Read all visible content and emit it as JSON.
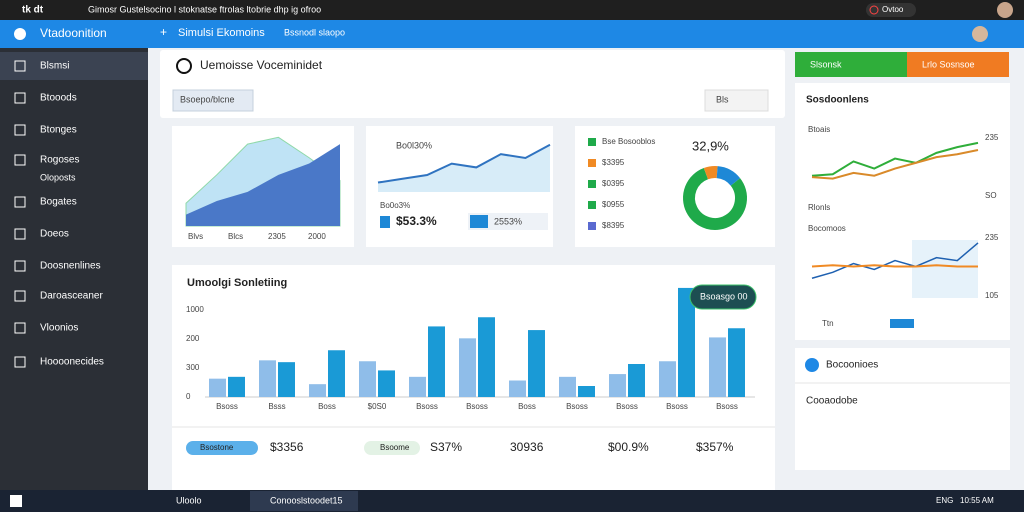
{
  "topbar": {
    "app": "tk dt",
    "title": "Gimosr Gustelsocino l stoknatse ftrolas ltobrie dhp ig ofroo",
    "status": "Ovtoo"
  },
  "sidebar": {
    "title": "Vtadoonition",
    "items": [
      "Blsmsi",
      "Btooods",
      "Btonges",
      "Rogoses",
      "Oloposts",
      "Bogates",
      "Doeos",
      "Doosnenlines",
      "Daroasceaner",
      "Vloonios",
      "Hoooonecides"
    ]
  },
  "header": {
    "title": "Simulsi Ekomoins",
    "link": "Bssnodl slaopo"
  },
  "panel": {
    "title": "Uemoisse Voceminidet",
    "filter": "Bsoepo/blcne",
    "menu": "Bls"
  },
  "area_card": {
    "labels": [
      "Blvs",
      "Blcs",
      "2305",
      "2000"
    ],
    "back": [
      20,
      45,
      72,
      78,
      60,
      40
    ],
    "front": [
      10,
      22,
      30,
      45,
      55,
      72
    ]
  },
  "line_card": {
    "label": "Bo0l30%",
    "values": [
      10,
      14,
      18,
      30,
      26,
      40,
      36,
      50
    ],
    "note": "Bo0o3%",
    "stat": "$53.3%",
    "stat2": "2553%"
  },
  "donut_card": {
    "total": "32,9%",
    "legend": [
      "Bse Bosooblos",
      "$3395",
      "$0395",
      "$0955",
      "$8395"
    ],
    "segments": [
      {
        "color": "#1faa4a",
        "value": 80
      },
      {
        "color": "#f08a24",
        "value": 7
      },
      {
        "color": "#1e88d6",
        "value": 13
      }
    ]
  },
  "bar_chart": {
    "title": "Umoolgi Sonletiing",
    "tooltip": "Bsoasgo 00",
    "y_labels": [
      "1000",
      "200",
      "300",
      "0"
    ],
    "x_labels": [
      "Bsoss",
      "Bsss",
      "Boss",
      "$0S0",
      "Bsoss",
      "Bsoss",
      "Boss",
      "Bsoss",
      "Bsoss",
      "Bsoss",
      "Bsoss"
    ],
    "ylim": [
      0,
      120
    ],
    "series": [
      {
        "color": "#8fbde9",
        "values": [
          20,
          40,
          14,
          39,
          22,
          64,
          18,
          22,
          25,
          39,
          65
        ]
      },
      {
        "color": "#1a9ad6",
        "values": [
          22,
          38,
          51,
          29,
          77,
          87,
          73,
          12,
          36,
          119,
          75
        ]
      }
    ],
    "stats": [
      "Bsostone",
      "$3356",
      "Bsoome",
      "S37%",
      "30936",
      "$00.9%",
      "$357%"
    ]
  },
  "right": {
    "green": "Slsonsk",
    "orange": "Lrlo Sosnsoe",
    "card_title": "Sosdoonlens",
    "chart1": {
      "label": "Btoais",
      "axis": [
        "235",
        "SO"
      ],
      "foot": "Rlonls",
      "green": [
        20,
        22,
        40,
        30,
        44,
        38,
        52,
        60,
        66
      ],
      "orange": [
        18,
        16,
        24,
        20,
        30,
        38,
        46,
        50,
        56
      ]
    },
    "chart2": {
      "label": "Bocomoos",
      "axis": [
        "235",
        "105"
      ],
      "foot": "Ttn",
      "blue": [
        20,
        30,
        45,
        35,
        50,
        40,
        55,
        50,
        80
      ],
      "orange": [
        40,
        42,
        40,
        42,
        40,
        40,
        42,
        40,
        40
      ]
    },
    "card2": "Bocoonioes",
    "card3": "Cooaodobe"
  },
  "taskbar": {
    "app": "Uloolo",
    "window": "Conooslstoodet15",
    "lang": "ENG",
    "time": "10:55 AM"
  }
}
